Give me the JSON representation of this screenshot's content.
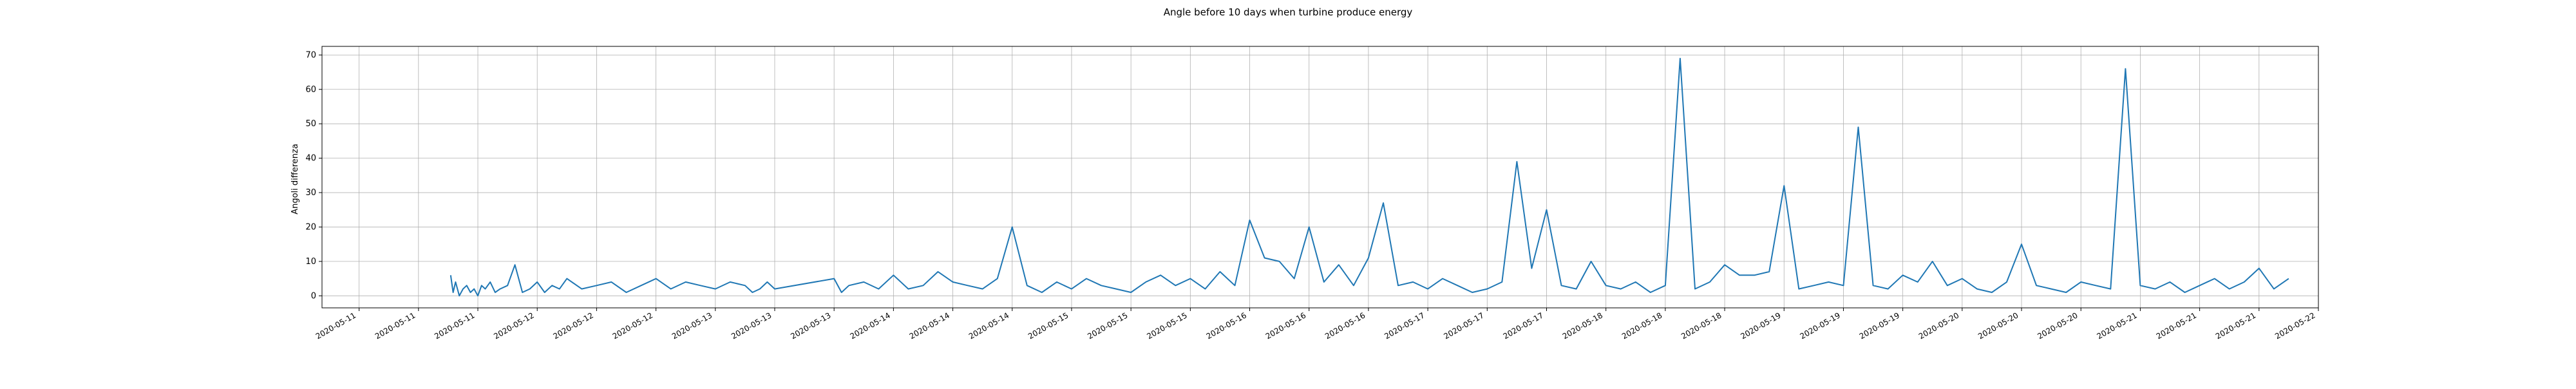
{
  "chart_data": {
    "type": "line",
    "title": "Angle before 10 days when turbine produce energy",
    "xlabel": "",
    "ylabel": "Angoli differenza",
    "x_range": [
      "2020-05-10T19:00",
      "2020-05-22T00:00"
    ],
    "ylim": [
      -3.5,
      72.5
    ],
    "grid": true,
    "x_tick_labels": [
      "2020-05-11",
      "2020-05-11",
      "2020-05-11",
      "2020-05-12",
      "2020-05-12",
      "2020-05-12",
      "2020-05-13",
      "2020-05-13",
      "2020-05-13",
      "2020-05-14",
      "2020-05-14",
      "2020-05-14",
      "2020-05-15",
      "2020-05-15",
      "2020-05-15",
      "2020-05-16",
      "2020-05-16",
      "2020-05-16",
      "2020-05-17",
      "2020-05-17",
      "2020-05-17",
      "2020-05-18",
      "2020-05-18",
      "2020-05-18",
      "2020-05-19",
      "2020-05-19",
      "2020-05-19",
      "2020-05-20",
      "2020-05-20",
      "2020-05-20",
      "2020-05-21",
      "2020-05-21",
      "2020-05-21",
      "2020-05-22"
    ],
    "x_tick_positions": [
      "2020-05-11T00:00",
      "2020-05-11T08:00",
      "2020-05-11T16:00",
      "2020-05-12T00:00",
      "2020-05-12T08:00",
      "2020-05-12T16:00",
      "2020-05-13T00:00",
      "2020-05-13T08:00",
      "2020-05-13T16:00",
      "2020-05-14T00:00",
      "2020-05-14T08:00",
      "2020-05-14T16:00",
      "2020-05-15T00:00",
      "2020-05-15T08:00",
      "2020-05-15T16:00",
      "2020-05-16T00:00",
      "2020-05-16T08:00",
      "2020-05-16T16:00",
      "2020-05-17T00:00",
      "2020-05-17T08:00",
      "2020-05-17T16:00",
      "2020-05-18T00:00",
      "2020-05-18T08:00",
      "2020-05-18T16:00",
      "2020-05-19T00:00",
      "2020-05-19T08:00",
      "2020-05-19T16:00",
      "2020-05-20T00:00",
      "2020-05-20T08:00",
      "2020-05-20T16:00",
      "2020-05-21T00:00",
      "2020-05-21T08:00",
      "2020-05-21T16:00",
      "2020-05-22T00:00"
    ],
    "y_ticks": [
      0,
      10,
      20,
      30,
      40,
      50,
      60,
      70
    ],
    "line_color": "#1f77b4",
    "series": [
      {
        "x": [
          "2020-05-11T12:20",
          "2020-05-11T12:40",
          "2020-05-11T13:00",
          "2020-05-11T13:30",
          "2020-05-11T14:00",
          "2020-05-11T14:30",
          "2020-05-11T15:00",
          "2020-05-11T15:30",
          "2020-05-11T16:00",
          "2020-05-11T16:30",
          "2020-05-11T17:00",
          "2020-05-11T17:40",
          "2020-05-11T18:20",
          "2020-05-11T19:00",
          "2020-05-11T20:00",
          "2020-05-11T21:00",
          "2020-05-11T22:00",
          "2020-05-11T23:00",
          "2020-05-12T00:00",
          "2020-05-12T01:00",
          "2020-05-12T02:00",
          "2020-05-12T03:00",
          "2020-05-12T04:00",
          "2020-05-12T06:00",
          "2020-05-12T08:00",
          "2020-05-12T10:00",
          "2020-05-12T12:00",
          "2020-05-12T14:00",
          "2020-05-12T16:00",
          "2020-05-12T18:00",
          "2020-05-12T20:00",
          "2020-05-12T22:00",
          "2020-05-13T00:00",
          "2020-05-13T02:00",
          "2020-05-13T04:00",
          "2020-05-13T05:00",
          "2020-05-13T06:00",
          "2020-05-13T07:00",
          "2020-05-13T08:00",
          "2020-05-13T16:00",
          "2020-05-13T17:00",
          "2020-05-13T18:00",
          "2020-05-13T20:00",
          "2020-05-13T22:00",
          "2020-05-14T00:00",
          "2020-05-14T02:00",
          "2020-05-14T04:00",
          "2020-05-14T06:00",
          "2020-05-14T08:00",
          "2020-05-14T10:00",
          "2020-05-14T12:00",
          "2020-05-14T14:00",
          "2020-05-14T16:00",
          "2020-05-14T18:00",
          "2020-05-14T20:00",
          "2020-05-14T22:00",
          "2020-05-15T00:00",
          "2020-05-15T02:00",
          "2020-05-15T04:00",
          "2020-05-15T06:00",
          "2020-05-15T08:00",
          "2020-05-15T10:00",
          "2020-05-15T12:00",
          "2020-05-15T14:00",
          "2020-05-15T16:00",
          "2020-05-15T18:00",
          "2020-05-15T20:00",
          "2020-05-15T22:00",
          "2020-05-16T00:00",
          "2020-05-16T02:00",
          "2020-05-16T04:00",
          "2020-05-16T06:00",
          "2020-05-16T08:00",
          "2020-05-16T10:00",
          "2020-05-16T12:00",
          "2020-05-16T14:00",
          "2020-05-16T16:00",
          "2020-05-16T18:00",
          "2020-05-16T20:00",
          "2020-05-16T22:00",
          "2020-05-17T00:00",
          "2020-05-17T02:00",
          "2020-05-17T04:00",
          "2020-05-17T06:00",
          "2020-05-17T08:00",
          "2020-05-17T10:00",
          "2020-05-17T12:00",
          "2020-05-17T14:00",
          "2020-05-17T16:00",
          "2020-05-17T18:00",
          "2020-05-17T20:00",
          "2020-05-17T22:00",
          "2020-05-18T00:00",
          "2020-05-18T02:00",
          "2020-05-18T04:00",
          "2020-05-18T06:00",
          "2020-05-18T08:00",
          "2020-05-18T10:00",
          "2020-05-18T12:00",
          "2020-05-18T14:00",
          "2020-05-18T16:00",
          "2020-05-18T18:00",
          "2020-05-18T20:00",
          "2020-05-18T22:00",
          "2020-05-19T00:00",
          "2020-05-19T02:00",
          "2020-05-19T04:00",
          "2020-05-19T06:00",
          "2020-05-19T08:00",
          "2020-05-19T10:00",
          "2020-05-19T12:00",
          "2020-05-19T14:00",
          "2020-05-19T16:00",
          "2020-05-19T18:00",
          "2020-05-19T20:00",
          "2020-05-19T22:00",
          "2020-05-20T00:00",
          "2020-05-20T02:00",
          "2020-05-20T04:00",
          "2020-05-20T06:00",
          "2020-05-20T08:00",
          "2020-05-20T10:00",
          "2020-05-20T12:00",
          "2020-05-20T14:00",
          "2020-05-20T16:00",
          "2020-05-20T18:00",
          "2020-05-20T20:00",
          "2020-05-20T22:00",
          "2020-05-21T00:00",
          "2020-05-21T02:00",
          "2020-05-21T04:00",
          "2020-05-21T06:00",
          "2020-05-21T08:00",
          "2020-05-21T10:00",
          "2020-05-21T12:00",
          "2020-05-21T14:00",
          "2020-05-21T16:00",
          "2020-05-21T18:00",
          "2020-05-21T20:00"
        ],
        "y": [
          6,
          1,
          4,
          0,
          2,
          3,
          1,
          2,
          0,
          3,
          2,
          4,
          1,
          2,
          3,
          9,
          1,
          2,
          4,
          1,
          3,
          2,
          5,
          2,
          3,
          4,
          1,
          3,
          5,
          2,
          4,
          3,
          2,
          4,
          3,
          1,
          2,
          4,
          2,
          5,
          1,
          3,
          4,
          2,
          6,
          2,
          3,
          7,
          4,
          3,
          2,
          5,
          20,
          3,
          1,
          4,
          2,
          5,
          3,
          2,
          1,
          4,
          6,
          3,
          5,
          2,
          7,
          3,
          22,
          11,
          10,
          5,
          20,
          4,
          9,
          3,
          11,
          27,
          3,
          4,
          2,
          5,
          3,
          1,
          2,
          4,
          39,
          8,
          25,
          3,
          2,
          10,
          3,
          2,
          4,
          1,
          3,
          69,
          2,
          4,
          9,
          6,
          6,
          7,
          32,
          2,
          3,
          4,
          3,
          49,
          3,
          2,
          6,
          4,
          10,
          3,
          5,
          2,
          1,
          4,
          15,
          3,
          2,
          1,
          4,
          3,
          2,
          66,
          3,
          2,
          4,
          1,
          3,
          5,
          2,
          4,
          8,
          2,
          5
        ]
      }
    ]
  }
}
